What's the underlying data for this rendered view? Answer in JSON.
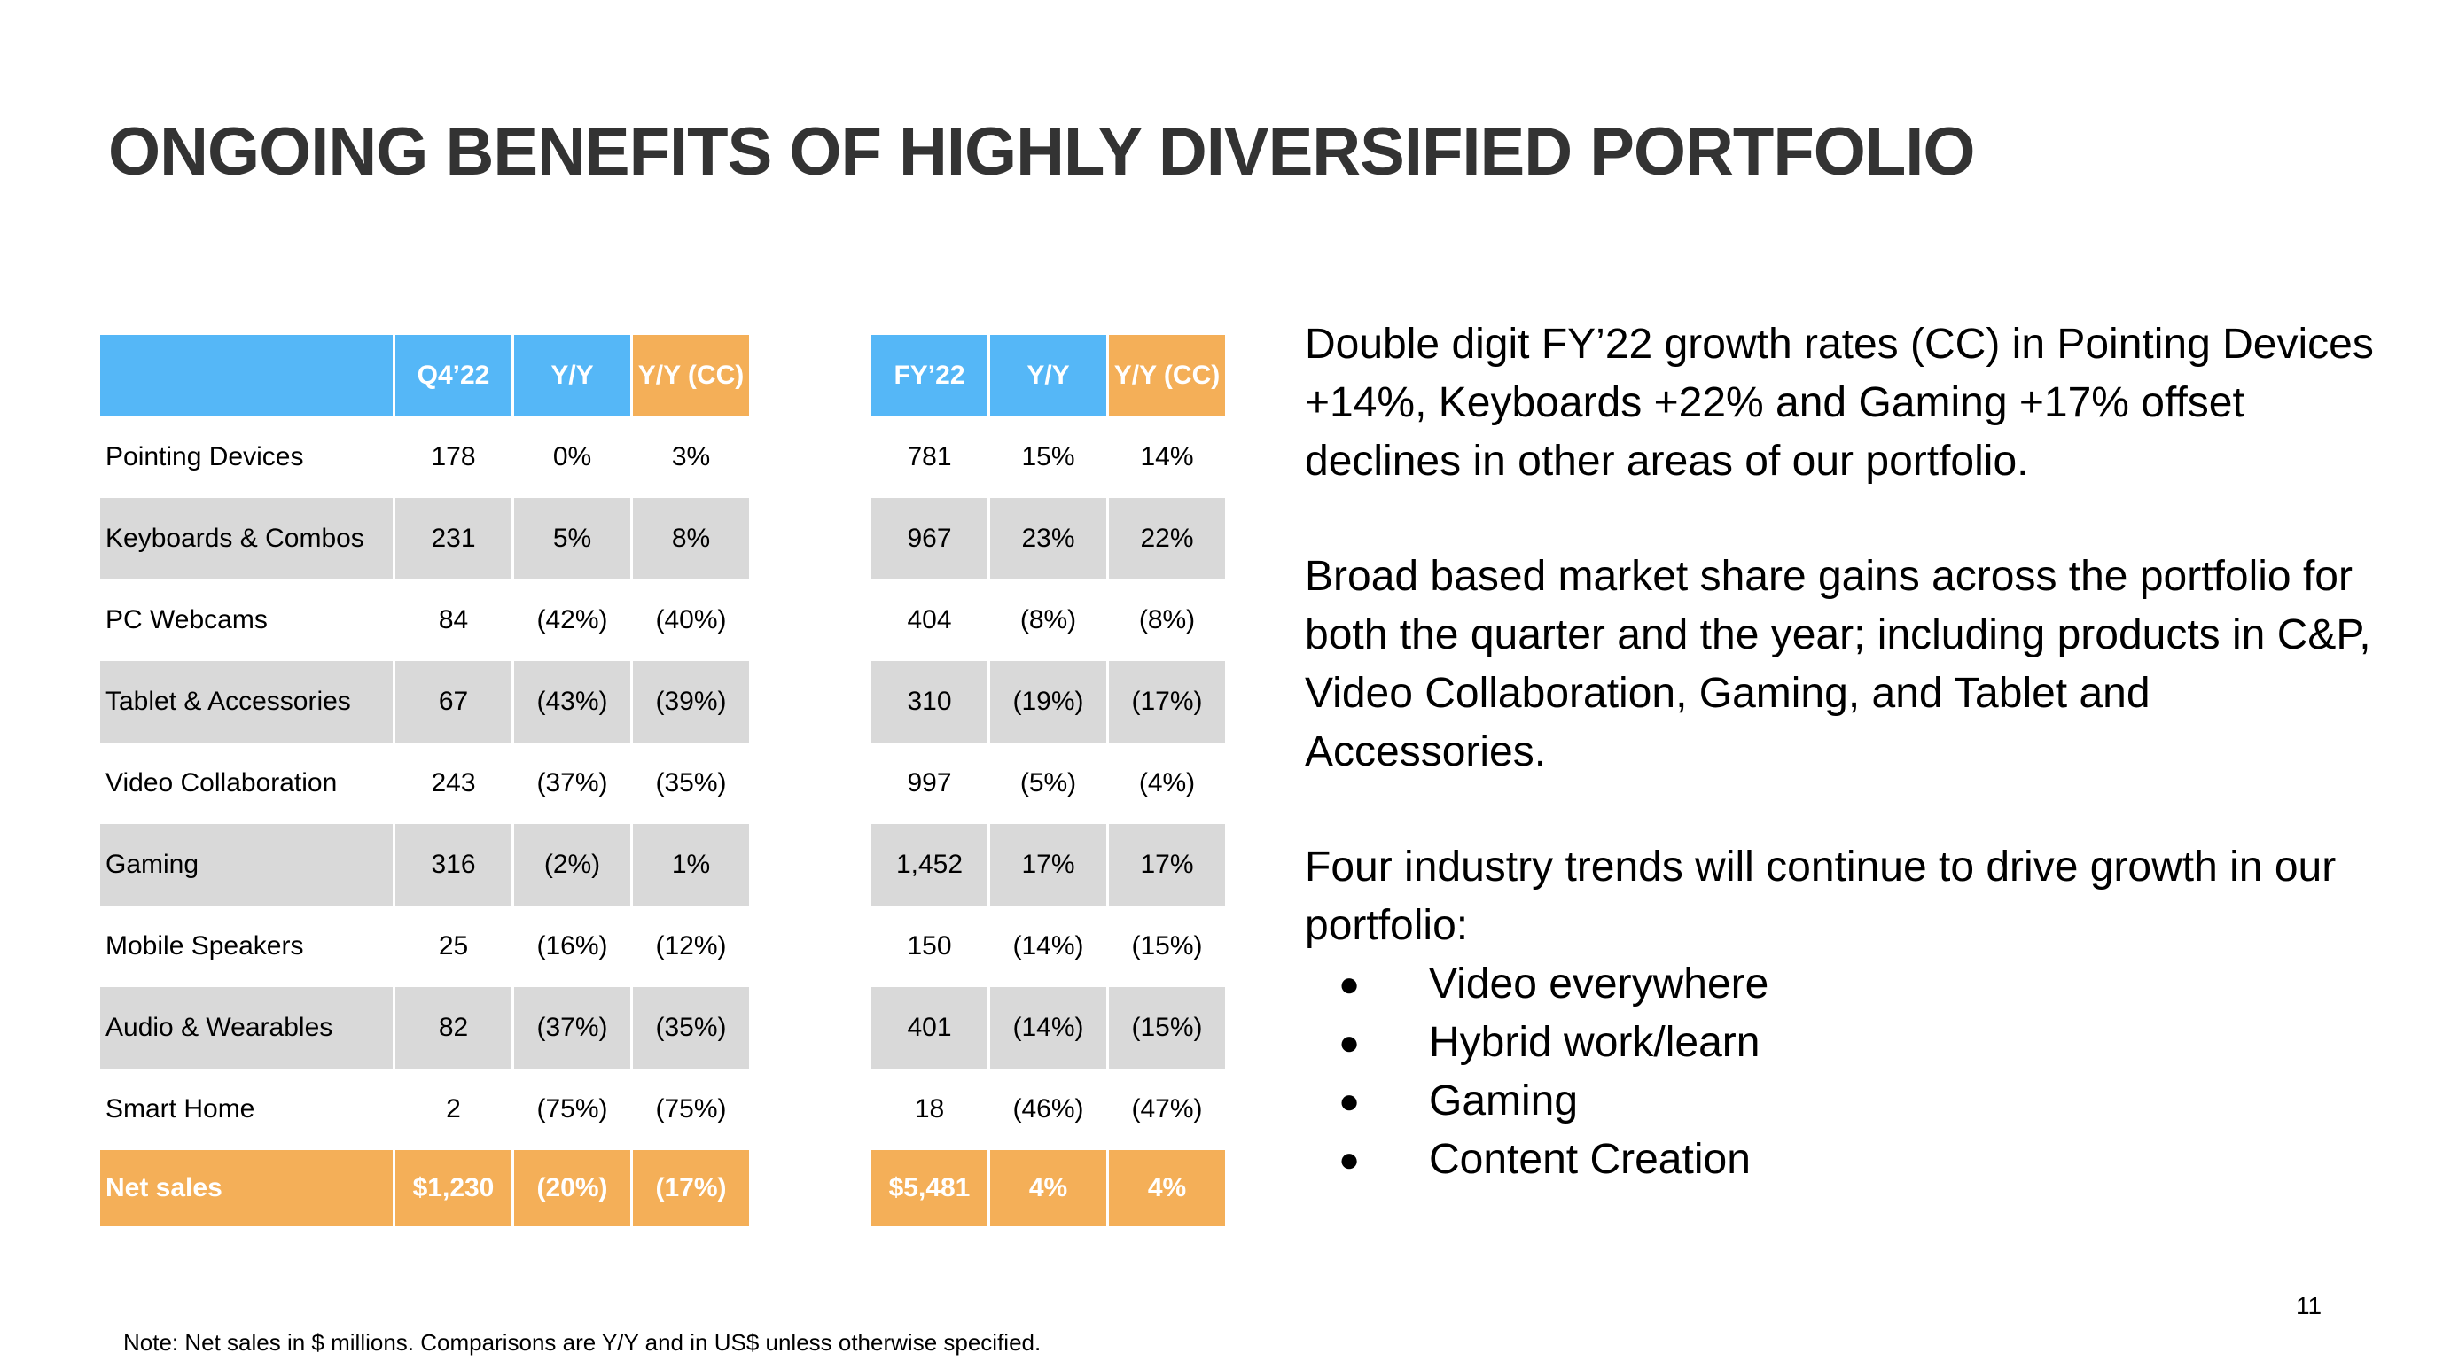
{
  "title": "ONGOING BENEFITS OF HIGHLY DIVERSIFIED PORTFOLIO",
  "colors": {
    "header_blue": "#55B7F7",
    "accent_orange": "#F4AF58",
    "row_shade": "#D9D9D9"
  },
  "table_q4": {
    "headers": [
      "",
      "Q4’22",
      "Y/Y",
      "Y/Y (CC)"
    ],
    "rows": [
      [
        "Pointing Devices",
        "178",
        "0%",
        "3%"
      ],
      [
        "Keyboards & Combos",
        "231",
        "5%",
        "8%"
      ],
      [
        "PC Webcams",
        "84",
        "(42%)",
        "(40%)"
      ],
      [
        "Tablet & Accessories",
        "67",
        "(43%)",
        "(39%)"
      ],
      [
        "Video Collaboration",
        "243",
        "(37%)",
        "(35%)"
      ],
      [
        "Gaming",
        "316",
        "(2%)",
        "1%"
      ],
      [
        "Mobile Speakers",
        "25",
        "(16%)",
        "(12%)"
      ],
      [
        "Audio & Wearables",
        "82",
        "(37%)",
        "(35%)"
      ],
      [
        "Smart Home",
        "2",
        "(75%)",
        "(75%)"
      ],
      [
        "Net sales",
        "$1,230",
        "(20%)",
        "(17%)"
      ]
    ]
  },
  "table_fy": {
    "headers": [
      "FY’22",
      "Y/Y",
      "Y/Y (CC)"
    ],
    "rows": [
      [
        "781",
        "15%",
        "14%"
      ],
      [
        "967",
        "23%",
        "22%"
      ],
      [
        "404",
        "(8%)",
        "(8%)"
      ],
      [
        "310",
        "(19%)",
        "(17%)"
      ],
      [
        "997",
        "(5%)",
        "(4%)"
      ],
      [
        "1,452",
        "17%",
        "17%"
      ],
      [
        "150",
        "(14%)",
        "(15%)"
      ],
      [
        "401",
        "(14%)",
        "(15%)"
      ],
      [
        "18",
        "(46%)",
        "(47%)"
      ],
      [
        "$5,481",
        "4%",
        "4%"
      ]
    ]
  },
  "commentary": {
    "para1": "Double digit FY’22 growth rates (CC) in Pointing Devices +14%, Keyboards +22% and Gaming +17% offset declines in other areas of our portfolio.",
    "para2": "Broad based market share gains across the portfolio for both the quarter and the year; including products in C&P, Video Collaboration, Gaming, and Tablet and Accessories.",
    "para3": "Four industry trends will continue to drive growth in our portfolio:",
    "bullets": [
      "Video everywhere",
      "Hybrid work/learn",
      "Gaming",
      "Content Creation"
    ]
  },
  "note": "Note:  Net sales in $ millions. Comparisons are Y/Y and in US$ unless otherwise specified.",
  "page_number": "11"
}
